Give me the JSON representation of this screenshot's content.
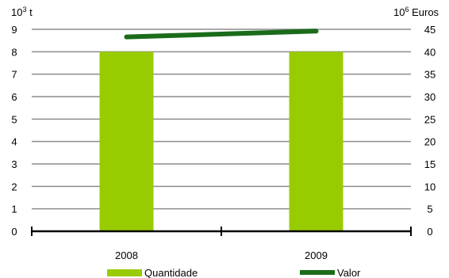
{
  "chart_data": {
    "type": "bar",
    "categories": [
      "2008",
      "2009"
    ],
    "series": [
      {
        "name": "Quantidade",
        "type": "bar",
        "axis": "left",
        "values": [
          8.0,
          8.0
        ],
        "color": "#99cc00"
      },
      {
        "name": "Valor",
        "type": "line",
        "axis": "right",
        "values": [
          43.3,
          44.6
        ],
        "color": "#1a6b1a"
      }
    ],
    "y_left": {
      "unit_base": "10",
      "unit_exp": "3",
      "unit_suffix": " t",
      "ylim": [
        0,
        9
      ],
      "ticks": [
        "0",
        "1",
        "2",
        "3",
        "4",
        "5",
        "6",
        "7",
        "8",
        "9"
      ]
    },
    "y_right": {
      "unit_base": "10",
      "unit_exp": "6",
      "unit_suffix": " Euros",
      "ylim": [
        0,
        45
      ],
      "ticks": [
        "0",
        "5",
        "10",
        "15",
        "20",
        "25",
        "30",
        "35",
        "40",
        "45"
      ]
    },
    "grid": true,
    "legend_position": "bottom"
  }
}
